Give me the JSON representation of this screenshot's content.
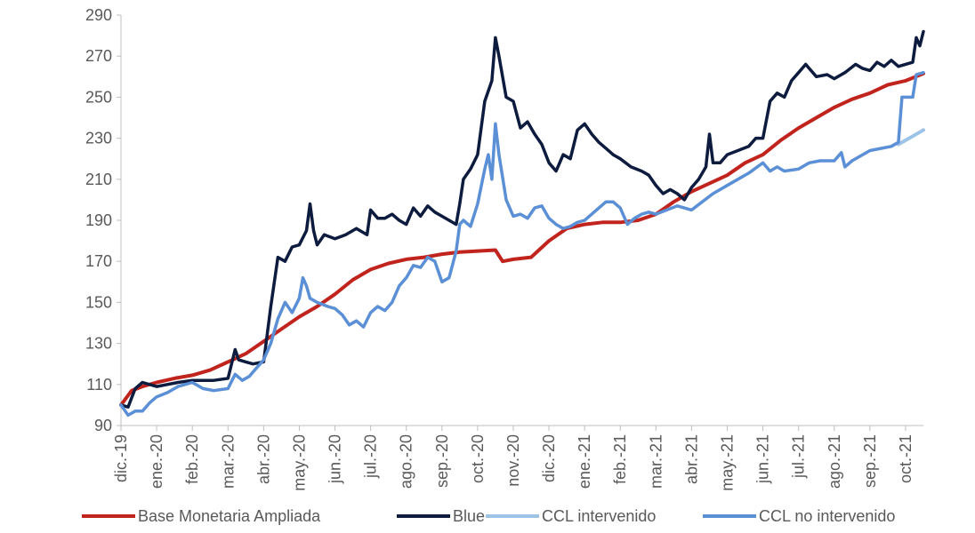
{
  "chart_data": {
    "type": "line",
    "title": "",
    "xlabel": "",
    "ylabel": "",
    "ylim": [
      90,
      290
    ],
    "yticks": [
      90,
      110,
      130,
      150,
      170,
      190,
      210,
      230,
      250,
      270,
      290
    ],
    "xticks": [
      "dic.-19",
      "ene.-20",
      "feb.-20",
      "mar.-20",
      "abr.-20",
      "may.-20",
      "jun.-20",
      "jul.-20",
      "ago.-20",
      "sep.-20",
      "oct.-20",
      "nov.-20",
      "dic.-20",
      "ene.-21",
      "feb.-21",
      "mar.-21",
      "abr.-21",
      "may.-21",
      "jun.-21",
      "jul.-21",
      "ago.-21",
      "sep.-21",
      "oct.-21"
    ],
    "grid": false,
    "legend_position": "bottom",
    "x_unit": "months since dic.-19",
    "series": [
      {
        "name": "Base Monetaria Ampliada",
        "color": "#c0241d",
        "width": 4,
        "points": [
          [
            0,
            100
          ],
          [
            0.3,
            107
          ],
          [
            0.6,
            109
          ],
          [
            1,
            111
          ],
          [
            1.5,
            113
          ],
          [
            2,
            114.5
          ],
          [
            2.5,
            117
          ],
          [
            3,
            121
          ],
          [
            3.5,
            125
          ],
          [
            4,
            131
          ],
          [
            4.5,
            137
          ],
          [
            5,
            143
          ],
          [
            5.5,
            148
          ],
          [
            6,
            154
          ],
          [
            6.5,
            161
          ],
          [
            7,
            166
          ],
          [
            7.5,
            169
          ],
          [
            8,
            171
          ],
          [
            8.5,
            172
          ],
          [
            9,
            173.5
          ],
          [
            9.5,
            174.5
          ],
          [
            10,
            175
          ],
          [
            10.5,
            175.5
          ],
          [
            10.7,
            170
          ],
          [
            11,
            171
          ],
          [
            11.5,
            172
          ],
          [
            12,
            180
          ],
          [
            12.5,
            186
          ],
          [
            13,
            188
          ],
          [
            13.5,
            189
          ],
          [
            14,
            189
          ],
          [
            14.5,
            190
          ],
          [
            15,
            193
          ],
          [
            15.5,
            199
          ],
          [
            16,
            204
          ],
          [
            16.5,
            208
          ],
          [
            17,
            212
          ],
          [
            17.5,
            218
          ],
          [
            18,
            222
          ],
          [
            18.5,
            229
          ],
          [
            19,
            235
          ],
          [
            19.5,
            240
          ],
          [
            20,
            245
          ],
          [
            20.5,
            249
          ],
          [
            21,
            252
          ],
          [
            21.5,
            256
          ],
          [
            22,
            258
          ],
          [
            22.5,
            261.5
          ]
        ]
      },
      {
        "name": "Blue",
        "color": "#0d1b3e",
        "width": 3.5,
        "points": [
          [
            0,
            100
          ],
          [
            0.2,
            99
          ],
          [
            0.4,
            108
          ],
          [
            0.6,
            111
          ],
          [
            0.8,
            110
          ],
          [
            1,
            109
          ],
          [
            1.3,
            110
          ],
          [
            1.6,
            111
          ],
          [
            2,
            112
          ],
          [
            2.3,
            112
          ],
          [
            2.6,
            112
          ],
          [
            3,
            113
          ],
          [
            3.2,
            127
          ],
          [
            3.3,
            122
          ],
          [
            3.5,
            121
          ],
          [
            3.7,
            120
          ],
          [
            4,
            121
          ],
          [
            4.2,
            148
          ],
          [
            4.4,
            172
          ],
          [
            4.6,
            170
          ],
          [
            4.8,
            177
          ],
          [
            5,
            178
          ],
          [
            5.2,
            185
          ],
          [
            5.3,
            198
          ],
          [
            5.4,
            185
          ],
          [
            5.5,
            178
          ],
          [
            5.7,
            183
          ],
          [
            6,
            181
          ],
          [
            6.3,
            183
          ],
          [
            6.6,
            186
          ],
          [
            6.9,
            183
          ],
          [
            7,
            195
          ],
          [
            7.2,
            191
          ],
          [
            7.4,
            191
          ],
          [
            7.6,
            193
          ],
          [
            7.8,
            190
          ],
          [
            8,
            188
          ],
          [
            8.2,
            196
          ],
          [
            8.4,
            192
          ],
          [
            8.6,
            197
          ],
          [
            8.8,
            194
          ],
          [
            9,
            192
          ],
          [
            9.2,
            190
          ],
          [
            9.4,
            188
          ],
          [
            9.5,
            198
          ],
          [
            9.6,
            210
          ],
          [
            9.8,
            215
          ],
          [
            10,
            222
          ],
          [
            10.2,
            248
          ],
          [
            10.4,
            258
          ],
          [
            10.5,
            279
          ],
          [
            10.6,
            270
          ],
          [
            10.8,
            250
          ],
          [
            11,
            248
          ],
          [
            11.2,
            235
          ],
          [
            11.4,
            238
          ],
          [
            11.6,
            232
          ],
          [
            11.8,
            227
          ],
          [
            12,
            218
          ],
          [
            12.2,
            214
          ],
          [
            12.4,
            222
          ],
          [
            12.6,
            220
          ],
          [
            12.8,
            234
          ],
          [
            13,
            237
          ],
          [
            13.2,
            232
          ],
          [
            13.4,
            228
          ],
          [
            13.6,
            225
          ],
          [
            13.8,
            222
          ],
          [
            14,
            220
          ],
          [
            14.3,
            216
          ],
          [
            14.6,
            214
          ],
          [
            14.8,
            212
          ],
          [
            15,
            207
          ],
          [
            15.2,
            203
          ],
          [
            15.4,
            205
          ],
          [
            15.6,
            203
          ],
          [
            15.8,
            200
          ],
          [
            16,
            206
          ],
          [
            16.2,
            210
          ],
          [
            16.4,
            216
          ],
          [
            16.5,
            232
          ],
          [
            16.6,
            218
          ],
          [
            16.8,
            218
          ],
          [
            17,
            222
          ],
          [
            17.3,
            224
          ],
          [
            17.6,
            226
          ],
          [
            17.8,
            230
          ],
          [
            18,
            230
          ],
          [
            18.2,
            248
          ],
          [
            18.4,
            252
          ],
          [
            18.6,
            250
          ],
          [
            18.8,
            258
          ],
          [
            19,
            262
          ],
          [
            19.2,
            266
          ],
          [
            19.3,
            264
          ],
          [
            19.5,
            260
          ],
          [
            19.8,
            261
          ],
          [
            20,
            259
          ],
          [
            20.3,
            262
          ],
          [
            20.6,
            266
          ],
          [
            20.8,
            264
          ],
          [
            21,
            263
          ],
          [
            21.2,
            267
          ],
          [
            21.4,
            265
          ],
          [
            21.6,
            268
          ],
          [
            21.8,
            265
          ],
          [
            22,
            266
          ],
          [
            22.2,
            267
          ],
          [
            22.3,
            279
          ],
          [
            22.4,
            275
          ],
          [
            22.5,
            282
          ]
        ]
      },
      {
        "name": "CCL intervenido",
        "color": "#9dc3e6",
        "width": 4,
        "points": [
          [
            21.8,
            227
          ],
          [
            22,
            229
          ],
          [
            22.2,
            231
          ],
          [
            22.4,
            233
          ],
          [
            22.5,
            234
          ]
        ]
      },
      {
        "name": "CCL no intervenido",
        "color": "#5b8fd6",
        "width": 3.5,
        "points": [
          [
            0,
            100
          ],
          [
            0.2,
            95
          ],
          [
            0.4,
            97
          ],
          [
            0.6,
            97
          ],
          [
            0.8,
            101
          ],
          [
            1,
            104
          ],
          [
            1.3,
            106
          ],
          [
            1.6,
            109
          ],
          [
            2,
            111
          ],
          [
            2.3,
            108
          ],
          [
            2.6,
            107
          ],
          [
            3,
            108
          ],
          [
            3.2,
            115
          ],
          [
            3.4,
            112
          ],
          [
            3.6,
            114
          ],
          [
            3.8,
            118
          ],
          [
            4,
            122
          ],
          [
            4.2,
            130
          ],
          [
            4.4,
            142
          ],
          [
            4.6,
            150
          ],
          [
            4.8,
            145
          ],
          [
            5,
            152
          ],
          [
            5.1,
            162
          ],
          [
            5.2,
            158
          ],
          [
            5.3,
            152
          ],
          [
            5.5,
            150
          ],
          [
            5.8,
            148
          ],
          [
            6,
            147
          ],
          [
            6.2,
            144
          ],
          [
            6.4,
            139
          ],
          [
            6.6,
            141
          ],
          [
            6.8,
            138
          ],
          [
            7,
            145
          ],
          [
            7.2,
            148
          ],
          [
            7.4,
            146
          ],
          [
            7.6,
            150
          ],
          [
            7.8,
            158
          ],
          [
            8,
            162
          ],
          [
            8.2,
            168
          ],
          [
            8.4,
            167
          ],
          [
            8.6,
            172
          ],
          [
            8.8,
            170
          ],
          [
            9,
            160
          ],
          [
            9.2,
            162
          ],
          [
            9.4,
            175
          ],
          [
            9.5,
            188
          ],
          [
            9.6,
            190
          ],
          [
            9.8,
            187
          ],
          [
            10,
            198
          ],
          [
            10.2,
            215
          ],
          [
            10.3,
            222
          ],
          [
            10.4,
            210
          ],
          [
            10.5,
            237
          ],
          [
            10.6,
            222
          ],
          [
            10.8,
            200
          ],
          [
            11,
            192
          ],
          [
            11.2,
            193
          ],
          [
            11.4,
            191
          ],
          [
            11.6,
            196
          ],
          [
            11.8,
            197
          ],
          [
            12,
            191
          ],
          [
            12.2,
            188
          ],
          [
            12.4,
            186
          ],
          [
            12.6,
            187
          ],
          [
            12.8,
            189
          ],
          [
            13,
            190
          ],
          [
            13.2,
            193
          ],
          [
            13.4,
            196
          ],
          [
            13.6,
            199
          ],
          [
            13.8,
            199
          ],
          [
            14,
            196
          ],
          [
            14.2,
            188
          ],
          [
            14.4,
            191
          ],
          [
            14.6,
            193
          ],
          [
            14.8,
            194
          ],
          [
            15,
            193
          ],
          [
            15.3,
            195
          ],
          [
            15.6,
            197
          ],
          [
            16,
            195
          ],
          [
            16.3,
            199
          ],
          [
            16.6,
            203
          ],
          [
            17,
            207
          ],
          [
            17.3,
            210
          ],
          [
            17.6,
            213
          ],
          [
            18,
            218
          ],
          [
            18.2,
            214
          ],
          [
            18.4,
            216
          ],
          [
            18.6,
            214
          ],
          [
            19,
            215
          ],
          [
            19.3,
            218
          ],
          [
            19.6,
            219
          ],
          [
            20,
            219
          ],
          [
            20.2,
            223
          ],
          [
            20.3,
            216
          ],
          [
            20.5,
            219
          ],
          [
            20.8,
            222
          ],
          [
            21,
            224
          ],
          [
            21.3,
            225
          ],
          [
            21.6,
            226
          ],
          [
            21.8,
            228
          ],
          [
            21.9,
            250
          ],
          [
            22.2,
            250
          ],
          [
            22.3,
            261
          ],
          [
            22.5,
            262
          ]
        ]
      }
    ]
  }
}
